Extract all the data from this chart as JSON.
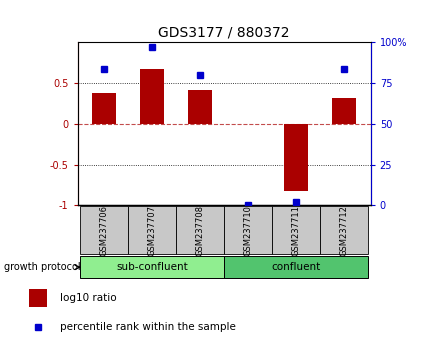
{
  "title": "GDS3177 / 880372",
  "samples": [
    "GSM237706",
    "GSM237707",
    "GSM237708",
    "GSM237710",
    "GSM237711",
    "GSM237712"
  ],
  "log10_ratio": [
    0.38,
    0.68,
    0.42,
    0.0,
    -0.82,
    0.32
  ],
  "percentile_rank": [
    84,
    97,
    80,
    0,
    2,
    84
  ],
  "bar_color": "#aa0000",
  "dot_color": "#0000cc",
  "ylim_left": [
    -1,
    1
  ],
  "ylim_right": [
    0,
    100
  ],
  "yticks_left": [
    -1,
    -0.5,
    0,
    0.5
  ],
  "yticks_right": [
    0,
    25,
    50,
    75,
    100
  ],
  "hlines_dotted": [
    -0.5,
    0.5
  ],
  "hline_dashed": 0,
  "group1_label": "sub-confluent",
  "group2_label": "confluent",
  "group1_indices": [
    0,
    1,
    2
  ],
  "group2_indices": [
    3,
    4,
    5
  ],
  "group1_color": "#90ee90",
  "group2_color": "#52c46e",
  "protocol_label": "growth protocol",
  "legend_bar_label": "log10 ratio",
  "legend_dot_label": "percentile rank within the sample",
  "bg_color": "#ffffff",
  "tick_area_color": "#c8c8c8",
  "title_fontsize": 10,
  "tick_fontsize": 7,
  "label_fontsize": 7
}
